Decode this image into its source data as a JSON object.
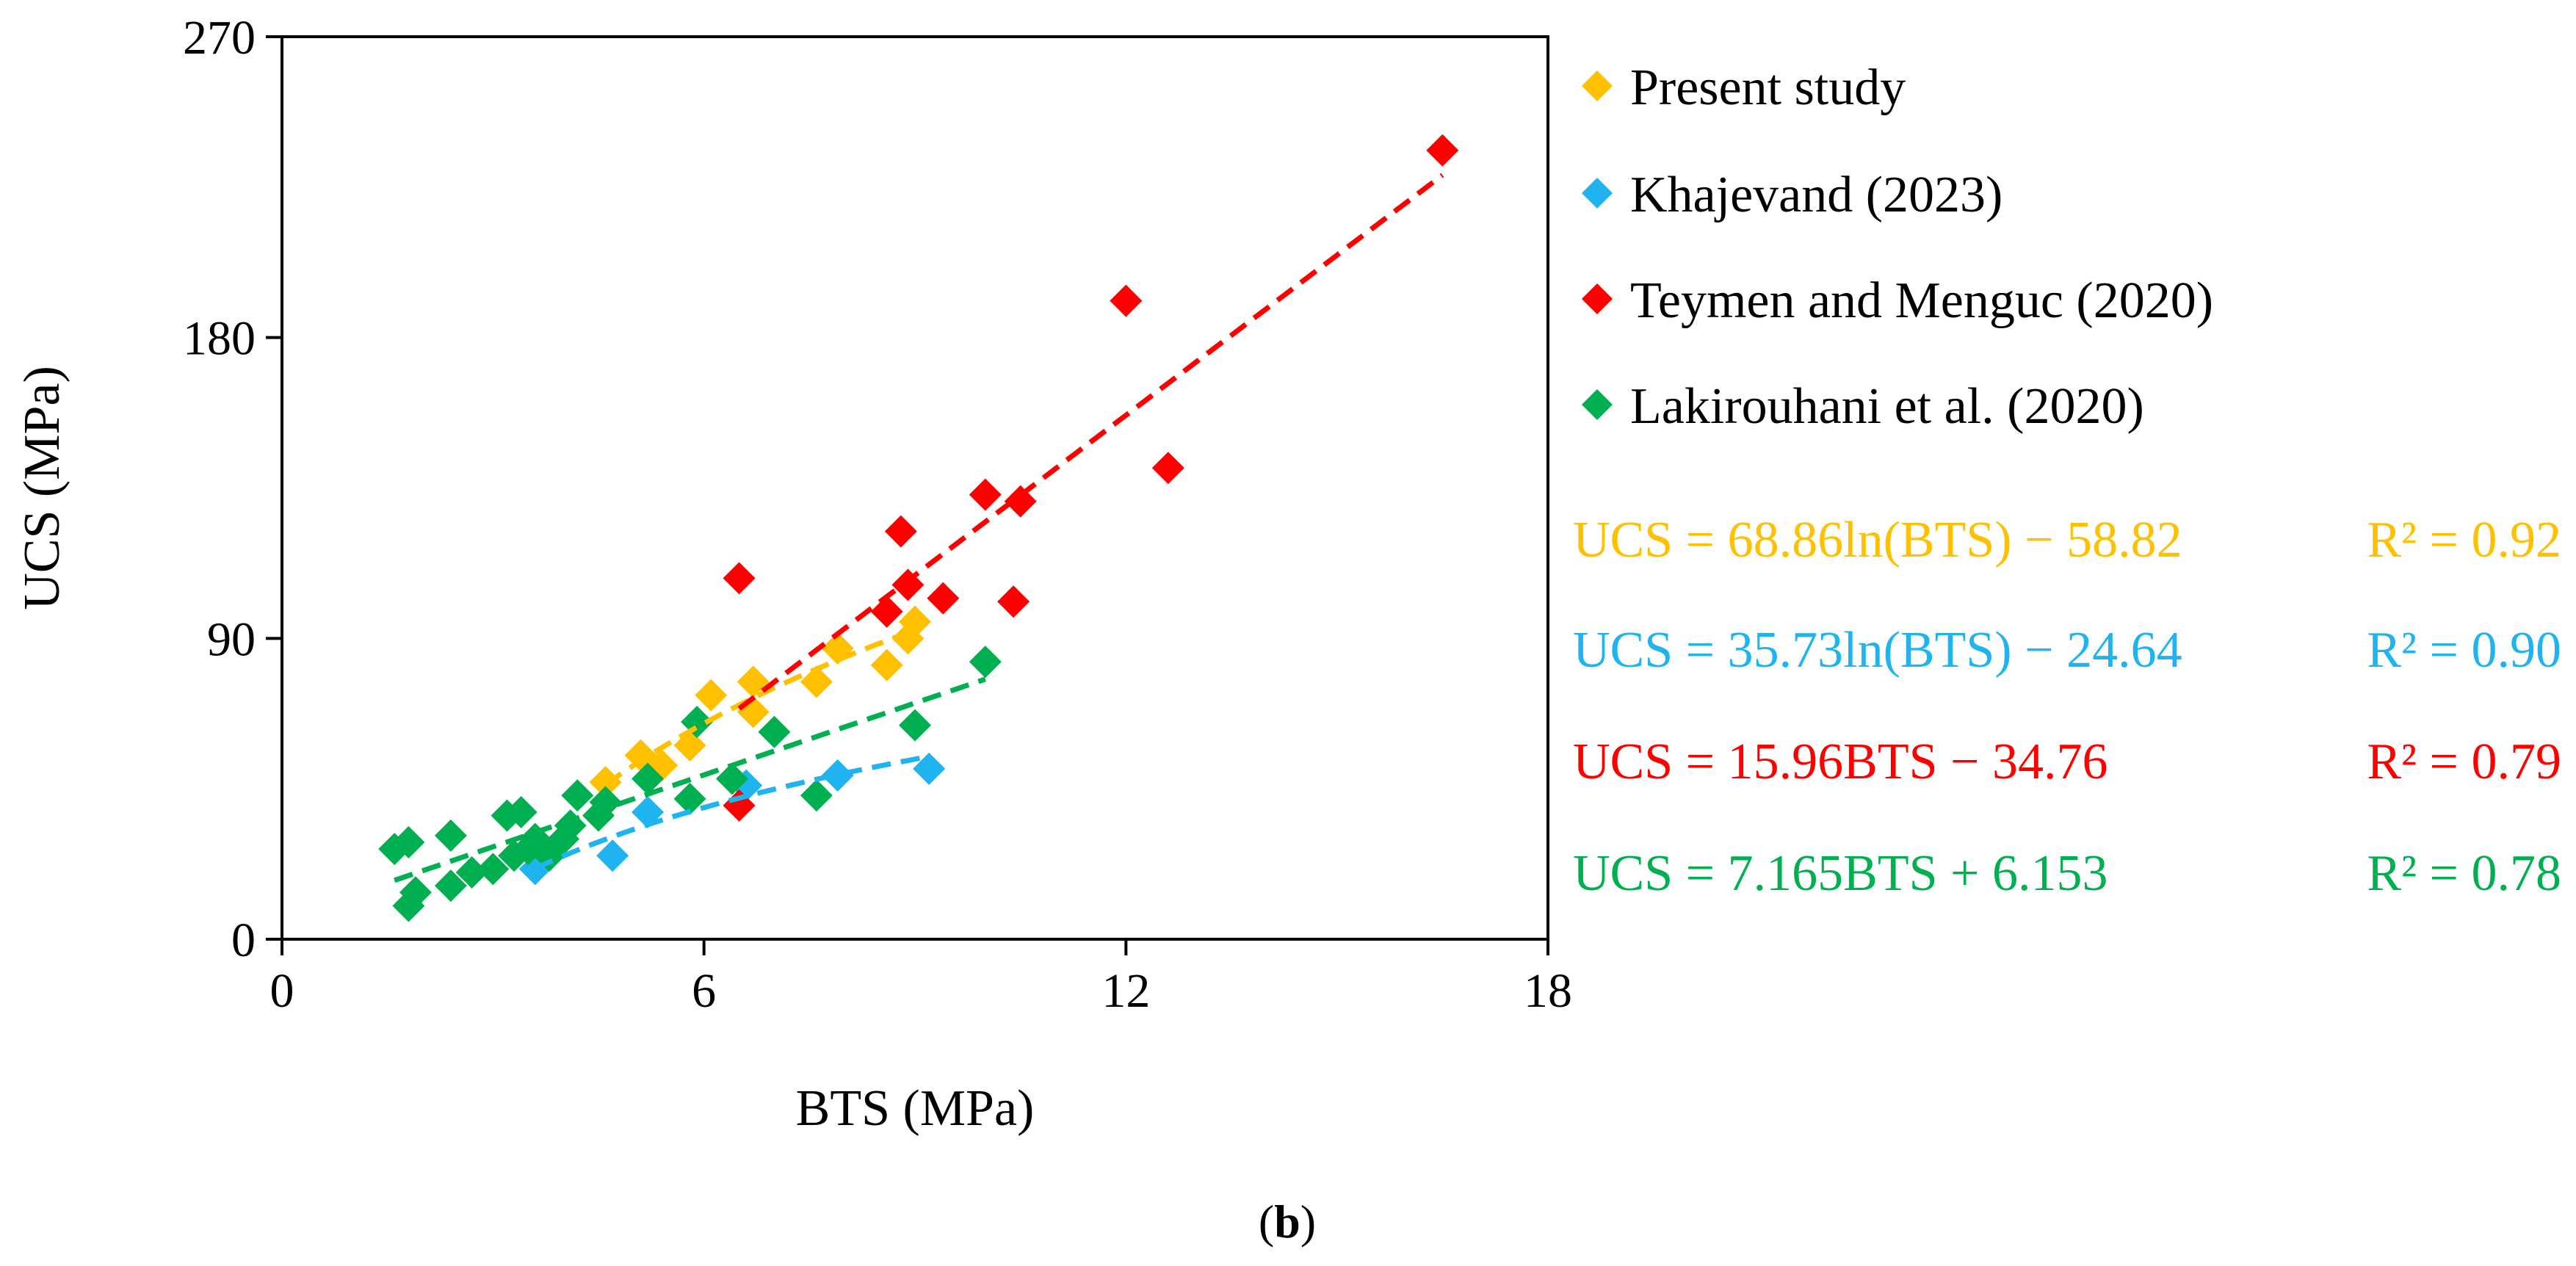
{
  "caption": {
    "open": "(",
    "letter": "b",
    "close": ")"
  },
  "chart_data": {
    "type": "scatter",
    "xlabel": "BTS (MPa)",
    "ylabel": "UCS (MPa)",
    "xlim": [
      0,
      18
    ],
    "ylim": [
      0,
      270
    ],
    "xticks": [
      0,
      6,
      12,
      18
    ],
    "yticks": [
      0,
      90,
      180,
      270
    ],
    "grid": false,
    "legend_position": "right",
    "series": [
      {
        "name": "Present study",
        "color": "#FFC000",
        "marker": "diamond",
        "points": [
          [
            4.6,
            47
          ],
          [
            5.1,
            55
          ],
          [
            5.4,
            52
          ],
          [
            5.8,
            58
          ],
          [
            6.1,
            73
          ],
          [
            6.7,
            68
          ],
          [
            6.7,
            77
          ],
          [
            7.6,
            77
          ],
          [
            7.9,
            87
          ],
          [
            8.6,
            82
          ],
          [
            8.9,
            90
          ],
          [
            9.0,
            95
          ]
        ],
        "trend": {
          "kind": "log",
          "a": 68.86,
          "b": -58.82,
          "x_range": [
            4.6,
            9.0
          ]
        },
        "equation": "UCS = 68.86ln(BTS) − 58.82",
        "r2": "R² = 0.92"
      },
      {
        "name": "Khajevand (2023)",
        "color": "#1FB3F0",
        "marker": "diamond",
        "points": [
          [
            3.6,
            21
          ],
          [
            4.7,
            25
          ],
          [
            5.2,
            38
          ],
          [
            6.6,
            46
          ],
          [
            7.9,
            49
          ],
          [
            9.2,
            51
          ]
        ],
        "trend": {
          "kind": "log",
          "a": 35.73,
          "b": -24.64,
          "x_range": [
            3.6,
            9.2
          ]
        },
        "equation": "UCS = 35.73ln(BTS) − 24.64",
        "r2": "R² = 0.90"
      },
      {
        "name": "Teymen and Menguc (2020)",
        "color": "#FF0000",
        "marker": "diamond",
        "points": [
          [
            6.5,
            40
          ],
          [
            6.5,
            108
          ],
          [
            8.6,
            98
          ],
          [
            8.8,
            122
          ],
          [
            8.9,
            106
          ],
          [
            9.4,
            102
          ],
          [
            10.0,
            133
          ],
          [
            10.4,
            101
          ],
          [
            10.5,
            131
          ],
          [
            12.0,
            191
          ],
          [
            12.6,
            141
          ],
          [
            16.5,
            236
          ]
        ],
        "trend": {
          "kind": "linear",
          "a": 15.96,
          "b": -34.76,
          "x_range": [
            6.5,
            16.5
          ]
        },
        "equation": "UCS = 15.96BTS − 34.76",
        "r2": "R² = 0.79"
      },
      {
        "name": "Lakirouhani et al. (2020)",
        "color": "#00B050",
        "marker": "diamond",
        "points": [
          [
            1.6,
            27
          ],
          [
            1.8,
            29
          ],
          [
            1.8,
            10
          ],
          [
            1.9,
            14
          ],
          [
            2.4,
            31
          ],
          [
            2.4,
            16
          ],
          [
            2.7,
            20
          ],
          [
            3.0,
            21
          ],
          [
            3.2,
            37
          ],
          [
            3.3,
            25
          ],
          [
            3.4,
            38
          ],
          [
            3.5,
            27
          ],
          [
            3.6,
            30
          ],
          [
            3.8,
            25
          ],
          [
            4.0,
            30
          ],
          [
            4.1,
            34
          ],
          [
            4.2,
            43
          ],
          [
            4.5,
            37
          ],
          [
            4.6,
            41
          ],
          [
            5.2,
            48
          ],
          [
            5.8,
            42
          ],
          [
            5.9,
            65
          ],
          [
            6.4,
            48
          ],
          [
            7.0,
            62
          ],
          [
            7.6,
            43
          ],
          [
            9.0,
            64
          ],
          [
            10.0,
            83
          ]
        ],
        "trend": {
          "kind": "linear",
          "a": 7.165,
          "b": 6.153,
          "x_range": [
            1.6,
            10.0
          ]
        },
        "equation": "UCS = 7.165BTS + 6.153",
        "r2": "R² = 0.78"
      }
    ]
  }
}
